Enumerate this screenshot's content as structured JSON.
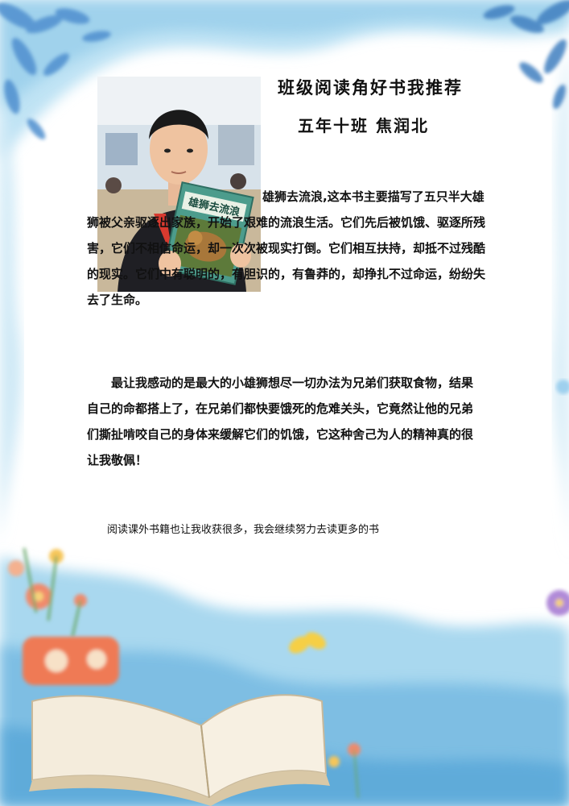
{
  "header": {
    "title": "班级阅读角好书我推荐",
    "author_line": "五年十班  焦润北"
  },
  "photo": {
    "book_cover_title": "雄狮去流浪"
  },
  "body": {
    "paragraph_1": "雄狮去流浪,这本书主要描写了五只半大雄狮被父亲驱逐出家族，开始了艰难的流浪生活。它们先后被饥饿、驱逐所残害，它们不相信命运，却一次次被现实打倒。它们相互扶持，却抵不过残酷的现实。它们中有聪明的，有胆识的，有鲁莽的，却挣扎不过命运，纷纷失去了生命。",
    "paragraph_2": "最让我感动的是最大的小雄狮想尽一切办法为兄弟们获取食物，结果自己的命都搭上了，在兄弟们都快要饿死的危难关头，它竟然让他的兄弟们撕扯啃咬自己的身体来缓解它们的饥饿，它这种舍己为人的精神真的很让我敬佩！"
  },
  "footer_note": "阅读课外书籍也让我收获很多，我会继续努力去读更多的书",
  "colors": {
    "sky_blue": "#9fd3ee",
    "deep_blue": "#5aa9d8",
    "leaf_blue": "#3f7fc0",
    "paper": "#f6eedd",
    "text": "#111111"
  }
}
